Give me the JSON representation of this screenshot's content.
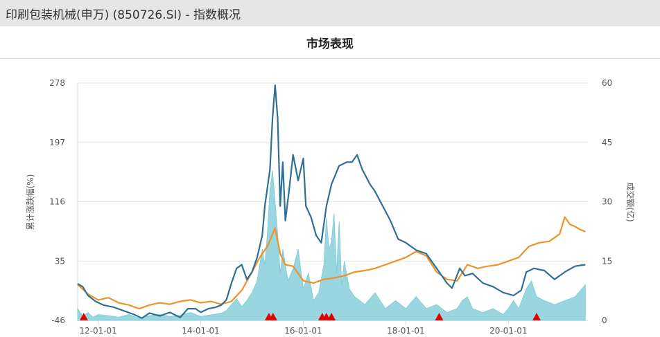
{
  "page": {
    "title": "印刷包装机械(申万) (850726.SI) - 指数概况"
  },
  "chart_data": {
    "type": "line",
    "title": "市场表现",
    "ylabel_left": "累计涨跌幅(%)",
    "ylabel_right": "成交额(亿)",
    "x_range": [
      2011.6,
      2021.55
    ],
    "x_ticks": [
      {
        "x": 2012.0,
        "label": "12-01-01"
      },
      {
        "x": 2014.0,
        "label": "14-01-01"
      },
      {
        "x": 2016.0,
        "label": "16-01-01"
      },
      {
        "x": 2018.0,
        "label": "18-01-01"
      },
      {
        "x": 2020.0,
        "label": "20-01-01"
      }
    ],
    "y_left": {
      "range": [
        -46,
        278
      ],
      "ticks": [
        "278",
        "197",
        "116",
        "35",
        "-46"
      ],
      "tick_values": [
        278,
        197,
        116,
        35,
        -46
      ]
    },
    "y_right": {
      "range": [
        0,
        60
      ],
      "ticks": [
        "60",
        "45",
        "30",
        "15",
        "0"
      ],
      "tick_values": [
        60,
        45,
        30,
        15,
        0
      ]
    },
    "colors": {
      "index": "#2e6f96",
      "benchmark": "#f0912a",
      "volume": "#8fd2dc",
      "volume_edge": "#6cc4d2",
      "marker": "#e60000",
      "grid": "#e6e6e6"
    },
    "series": [
      {
        "type": "line",
        "points": [
          [
            2011.6,
            4
          ],
          [
            2011.7,
            0
          ],
          [
            2011.8,
            -12
          ],
          [
            2011.95,
            -20
          ],
          [
            2012.1,
            -25
          ],
          [
            2012.3,
            -28
          ],
          [
            2012.5,
            -33
          ],
          [
            2012.7,
            -38
          ],
          [
            2012.85,
            -43
          ],
          [
            2013.0,
            -36
          ],
          [
            2013.2,
            -40
          ],
          [
            2013.4,
            -35
          ],
          [
            2013.6,
            -42
          ],
          [
            2013.75,
            -30
          ],
          [
            2013.9,
            -30
          ],
          [
            2014.0,
            -35
          ],
          [
            2014.15,
            -30
          ],
          [
            2014.3,
            -28
          ],
          [
            2014.4,
            -25
          ],
          [
            2014.5,
            -18
          ],
          [
            2014.6,
            5
          ],
          [
            2014.7,
            25
          ],
          [
            2014.8,
            30
          ],
          [
            2014.9,
            10
          ],
          [
            2015.0,
            20
          ],
          [
            2015.1,
            40
          ],
          [
            2015.2,
            70
          ],
          [
            2015.25,
            110
          ],
          [
            2015.35,
            160
          ],
          [
            2015.4,
            230
          ],
          [
            2015.45,
            275
          ],
          [
            2015.5,
            230
          ],
          [
            2015.55,
            110
          ],
          [
            2015.6,
            170
          ],
          [
            2015.65,
            90
          ],
          [
            2015.72,
            130
          ],
          [
            2015.8,
            180
          ],
          [
            2015.9,
            145
          ],
          [
            2016.0,
            175
          ],
          [
            2016.05,
            110
          ],
          [
            2016.15,
            95
          ],
          [
            2016.25,
            70
          ],
          [
            2016.35,
            60
          ],
          [
            2016.45,
            110
          ],
          [
            2016.55,
            140
          ],
          [
            2016.7,
            165
          ],
          [
            2016.85,
            170
          ],
          [
            2016.95,
            170
          ],
          [
            2017.05,
            180
          ],
          [
            2017.15,
            160
          ],
          [
            2017.3,
            140
          ],
          [
            2017.4,
            130
          ],
          [
            2017.55,
            110
          ],
          [
            2017.7,
            90
          ],
          [
            2017.85,
            65
          ],
          [
            2018.0,
            60
          ],
          [
            2018.2,
            50
          ],
          [
            2018.4,
            45
          ],
          [
            2018.6,
            25
          ],
          [
            2018.8,
            5
          ],
          [
            2018.9,
            -2
          ],
          [
            2019.05,
            25
          ],
          [
            2019.15,
            15
          ],
          [
            2019.3,
            18
          ],
          [
            2019.5,
            5
          ],
          [
            2019.7,
            0
          ],
          [
            2019.9,
            -8
          ],
          [
            2020.1,
            -12
          ],
          [
            2020.25,
            -5
          ],
          [
            2020.35,
            20
          ],
          [
            2020.5,
            25
          ],
          [
            2020.7,
            22
          ],
          [
            2020.9,
            10
          ],
          [
            2021.1,
            20
          ],
          [
            2021.3,
            28
          ],
          [
            2021.5,
            30
          ]
        ]
      },
      {
        "type": "line",
        "points": [
          [
            2011.6,
            3
          ],
          [
            2011.8,
            -10
          ],
          [
            2012.0,
            -18
          ],
          [
            2012.2,
            -15
          ],
          [
            2012.4,
            -22
          ],
          [
            2012.6,
            -25
          ],
          [
            2012.8,
            -30
          ],
          [
            2013.0,
            -25
          ],
          [
            2013.2,
            -22
          ],
          [
            2013.4,
            -24
          ],
          [
            2013.6,
            -20
          ],
          [
            2013.8,
            -18
          ],
          [
            2014.0,
            -22
          ],
          [
            2014.2,
            -20
          ],
          [
            2014.4,
            -24
          ],
          [
            2014.6,
            -20
          ],
          [
            2014.8,
            -5
          ],
          [
            2015.0,
            20
          ],
          [
            2015.15,
            40
          ],
          [
            2015.3,
            55
          ],
          [
            2015.45,
            80
          ],
          [
            2015.55,
            45
          ],
          [
            2015.65,
            30
          ],
          [
            2015.8,
            28
          ],
          [
            2016.0,
            8
          ],
          [
            2016.2,
            5
          ],
          [
            2016.4,
            10
          ],
          [
            2016.6,
            12
          ],
          [
            2016.8,
            15
          ],
          [
            2017.0,
            20
          ],
          [
            2017.2,
            22
          ],
          [
            2017.4,
            25
          ],
          [
            2017.6,
            30
          ],
          [
            2017.8,
            35
          ],
          [
            2018.0,
            40
          ],
          [
            2018.2,
            48
          ],
          [
            2018.4,
            42
          ],
          [
            2018.6,
            20
          ],
          [
            2018.8,
            10
          ],
          [
            2019.0,
            8
          ],
          [
            2019.2,
            30
          ],
          [
            2019.4,
            25
          ],
          [
            2019.6,
            28
          ],
          [
            2019.8,
            30
          ],
          [
            2020.0,
            35
          ],
          [
            2020.2,
            40
          ],
          [
            2020.4,
            55
          ],
          [
            2020.6,
            60
          ],
          [
            2020.8,
            62
          ],
          [
            2021.0,
            72
          ],
          [
            2021.1,
            95
          ],
          [
            2021.2,
            85
          ],
          [
            2021.3,
            82
          ],
          [
            2021.4,
            78
          ],
          [
            2021.5,
            75
          ]
        ]
      },
      {
        "type": "area",
        "axis": "right",
        "points": [
          [
            2011.6,
            3
          ],
          [
            2011.7,
            1
          ],
          [
            2011.8,
            2
          ],
          [
            2011.9,
            0.8
          ],
          [
            2012.0,
            1.5
          ],
          [
            2012.2,
            1.2
          ],
          [
            2012.4,
            0.8
          ],
          [
            2012.6,
            1.5
          ],
          [
            2012.8,
            0.5
          ],
          [
            2013.0,
            1.2
          ],
          [
            2013.2,
            1.5
          ],
          [
            2013.4,
            1.0
          ],
          [
            2013.6,
            1.3
          ],
          [
            2013.8,
            2.0
          ],
          [
            2014.0,
            1.0
          ],
          [
            2014.2,
            1.4
          ],
          [
            2014.4,
            1.8
          ],
          [
            2014.5,
            2.5
          ],
          [
            2014.6,
            4.0
          ],
          [
            2014.7,
            5.5
          ],
          [
            2014.8,
            3.5
          ],
          [
            2014.9,
            5.0
          ],
          [
            2015.0,
            7.0
          ],
          [
            2015.1,
            10
          ],
          [
            2015.2,
            18
          ],
          [
            2015.25,
            14
          ],
          [
            2015.3,
            22
          ],
          [
            2015.35,
            33
          ],
          [
            2015.4,
            38
          ],
          [
            2015.45,
            30
          ],
          [
            2015.5,
            22
          ],
          [
            2015.55,
            12
          ],
          [
            2015.6,
            18
          ],
          [
            2015.7,
            10
          ],
          [
            2015.8,
            13
          ],
          [
            2015.9,
            18
          ],
          [
            2016.0,
            8
          ],
          [
            2016.1,
            12
          ],
          [
            2016.2,
            5
          ],
          [
            2016.3,
            7
          ],
          [
            2016.4,
            14
          ],
          [
            2016.45,
            26
          ],
          [
            2016.5,
            18
          ],
          [
            2016.55,
            20
          ],
          [
            2016.6,
            27
          ],
          [
            2016.65,
            12
          ],
          [
            2016.7,
            25
          ],
          [
            2016.75,
            9
          ],
          [
            2016.8,
            15
          ],
          [
            2016.9,
            8
          ],
          [
            2017.0,
            6
          ],
          [
            2017.2,
            4
          ],
          [
            2017.4,
            7
          ],
          [
            2017.6,
            3
          ],
          [
            2017.8,
            5
          ],
          [
            2018.0,
            3
          ],
          [
            2018.2,
            6
          ],
          [
            2018.4,
            3
          ],
          [
            2018.6,
            4
          ],
          [
            2018.8,
            2
          ],
          [
            2019.0,
            3
          ],
          [
            2019.1,
            5
          ],
          [
            2019.2,
            6
          ],
          [
            2019.3,
            3
          ],
          [
            2019.5,
            2
          ],
          [
            2019.7,
            3
          ],
          [
            2019.9,
            1.5
          ],
          [
            2020.0,
            3
          ],
          [
            2020.1,
            5
          ],
          [
            2020.2,
            3
          ],
          [
            2020.35,
            8
          ],
          [
            2020.45,
            10
          ],
          [
            2020.55,
            6
          ],
          [
            2020.7,
            5
          ],
          [
            2020.9,
            4
          ],
          [
            2021.1,
            5
          ],
          [
            2021.3,
            6
          ],
          [
            2021.5,
            9
          ]
        ]
      }
    ],
    "markers": [
      2011.72,
      2015.33,
      2015.41,
      2016.37,
      2016.45,
      2016.55,
      2018.65,
      2020.55
    ]
  }
}
